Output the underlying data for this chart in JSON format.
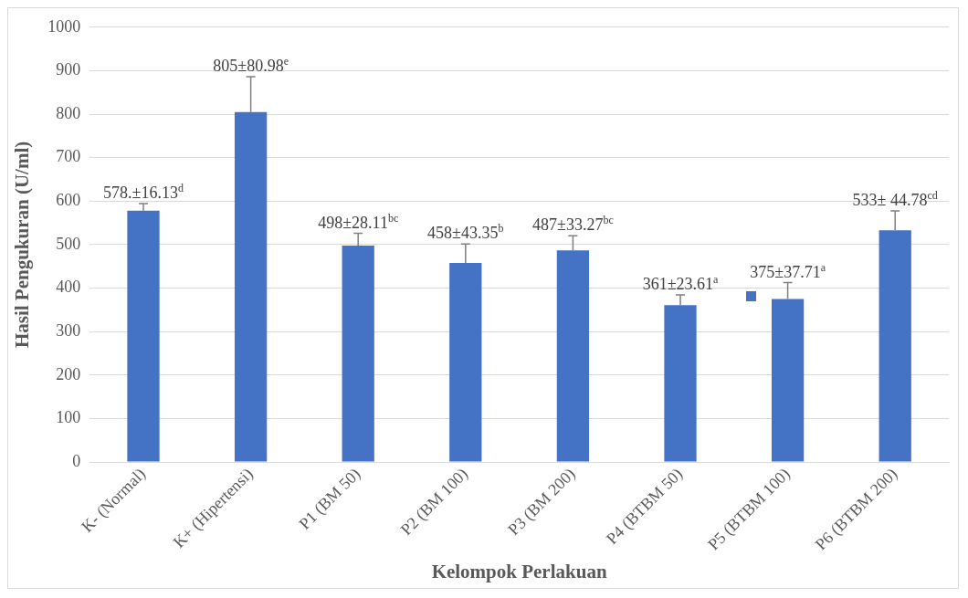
{
  "chart_data": {
    "type": "bar",
    "xlabel": "Kelompok Perlakuan",
    "ylabel": "Hasil Pengukuran (U/ml)",
    "categories": [
      "K- (Normal)",
      "K+ (Hipertensi)",
      "P1 (BM 50)",
      "P2 (BM 100)",
      "P3 (BM 200)",
      "P4 (BTBM 50)",
      "P5 (BTBM 100)",
      "P6 (BTBM 200)"
    ],
    "values": [
      578,
      805,
      498,
      458,
      487,
      361,
      375,
      533
    ],
    "errors": [
      [
        578,
        594.13
      ],
      [
        805,
        885.98
      ],
      [
        498,
        526.11
      ],
      [
        458,
        501.35
      ],
      [
        487,
        520.27
      ],
      [
        361,
        384.61
      ],
      [
        375,
        412.71
      ],
      [
        533,
        577.78
      ]
    ],
    "value_labels": [
      "578.±16.13$^{d}$",
      "805±80.98$^{e}$",
      "498±28.11$^{bc}$",
      "458±43.35$^{b}$",
      "487±33.27$^{bc}$",
      "361±23.61$^{a}$",
      "375±37.71$^{a}$",
      "533± 44.78$^{cd}$"
    ],
    "color": "#4472c4",
    "ylim": [
      0,
      1000
    ],
    "yticks": [
      0,
      100,
      200,
      300,
      400,
      500,
      600,
      700,
      800,
      900,
      1000
    ],
    "grid": "y",
    "legend": false
  }
}
